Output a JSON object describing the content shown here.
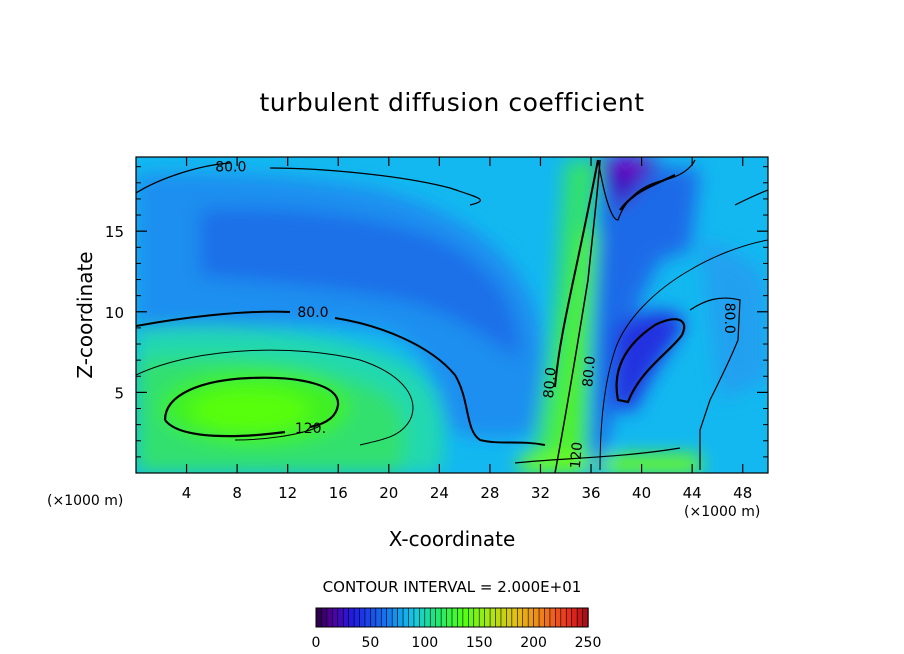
{
  "chart_data": {
    "type": "heatmap",
    "title": "turbulent diffusion coefficient",
    "xlabel": "X-coordinate",
    "ylabel": "Z-coordinate",
    "x_unit": "(×1000 m)",
    "y_unit": "(×1000 m)",
    "xlim": [
      0,
      50
    ],
    "ylim": [
      0,
      19.6
    ],
    "x_ticks": [
      4,
      8,
      12,
      16,
      20,
      24,
      28,
      32,
      36,
      40,
      44,
      48
    ],
    "y_ticks": [
      5,
      10,
      15
    ],
    "contour_interval_text": "CONTOUR INTERVAL = 2.000E+01",
    "colorbar": {
      "range": [
        0,
        250
      ],
      "ticks": [
        0,
        50,
        100,
        150,
        200,
        250
      ]
    },
    "contour_labels": [
      {
        "text": "80.0",
        "x": 7.5,
        "y": 19.0
      },
      {
        "text": "80.0",
        "x": 14.0,
        "y": 10.0
      },
      {
        "text": "120.",
        "x": 13.8,
        "y": 2.8
      },
      {
        "text": "80.0",
        "x": 32.7,
        "y": 5.6
      },
      {
        "text": "80.0",
        "x": 35.8,
        "y": 6.3
      },
      {
        "text": "120",
        "x": 34.8,
        "y": 1.1
      },
      {
        "text": "80.0",
        "x": 47.0,
        "y": 9.6
      }
    ],
    "field_features": [
      {
        "kind": "max",
        "x": 7.5,
        "y": 4.0,
        "value": 130
      },
      {
        "kind": "min",
        "x": 15,
        "y": 13.5,
        "value": 60
      },
      {
        "kind": "max_band",
        "x": 34.5,
        "y": 2.0,
        "value": 125
      },
      {
        "kind": "min",
        "x": 39.0,
        "y": 7.0,
        "value": 40
      },
      {
        "kind": "min",
        "x": 38.8,
        "y": 19.5,
        "value": 15
      }
    ]
  }
}
